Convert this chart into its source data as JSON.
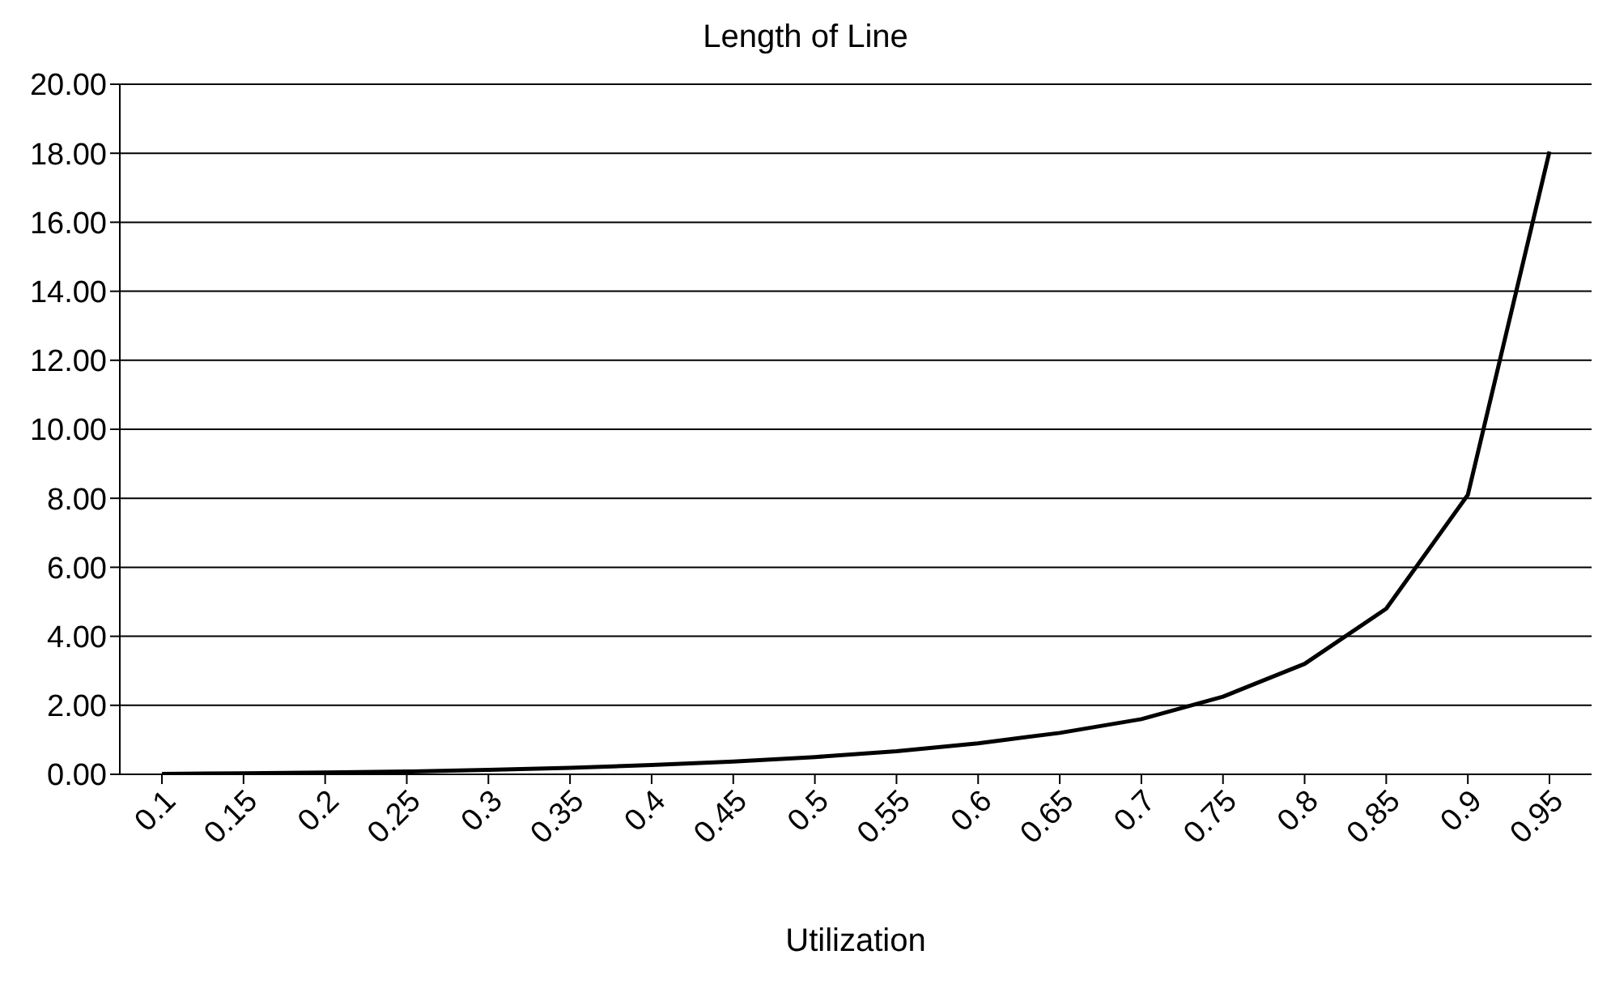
{
  "chart_data": {
    "type": "line",
    "title": "Length of Line",
    "xlabel": "Utilization",
    "categories": [
      "0.1",
      "0.15",
      "0.2",
      "0.25",
      "0.3",
      "0.35",
      "0.4",
      "0.45",
      "0.5",
      "0.55",
      "0.6",
      "0.65",
      "0.7",
      "0.75",
      "0.8",
      "0.85",
      "0.9",
      "0.95"
    ],
    "series": [
      {
        "color": "#000000",
        "values": [
          0.01,
          0.03,
          0.05,
          0.08,
          0.13,
          0.19,
          0.27,
          0.37,
          0.5,
          0.67,
          0.9,
          1.2,
          1.6,
          2.25,
          3.2,
          4.8,
          8.1,
          18.05
        ]
      }
    ],
    "ylim": [
      0,
      20
    ],
    "yticks": [
      {
        "value": 0,
        "label": "0.00"
      },
      {
        "value": 2,
        "label": "2.00"
      },
      {
        "value": 4,
        "label": "4.00"
      },
      {
        "value": 6,
        "label": "6.00"
      },
      {
        "value": 8,
        "label": "8.00"
      },
      {
        "value": 10,
        "label": "10.00"
      },
      {
        "value": 12,
        "label": "12.00"
      },
      {
        "value": 14,
        "label": "14.00"
      },
      {
        "value": 16,
        "label": "16.00"
      },
      {
        "value": 18,
        "label": "18.00"
      },
      {
        "value": 20,
        "label": "20.00"
      }
    ],
    "grid": "y",
    "marker": "none",
    "line_style": "solid"
  }
}
